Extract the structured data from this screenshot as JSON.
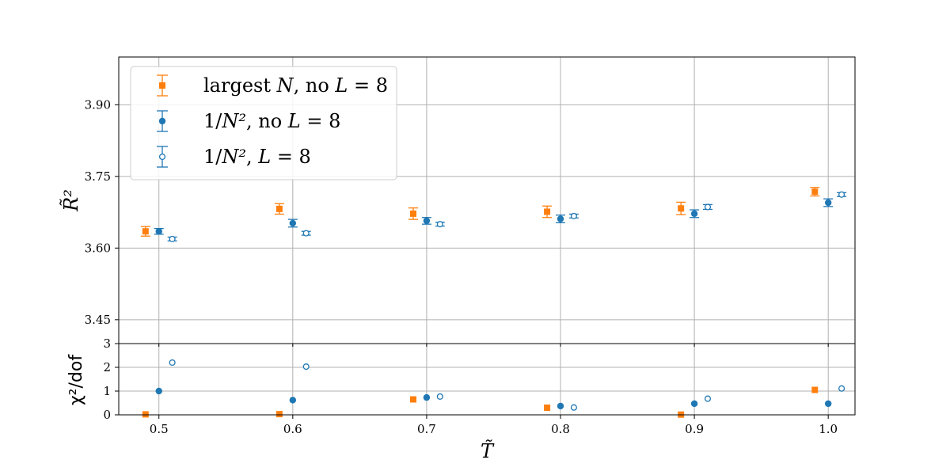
{
  "chart_data": [
    {
      "type": "scatter",
      "panel": "top",
      "xlabel": "T̃",
      "ylabel": "R̃²",
      "xlim": [
        0.47,
        1.02
      ],
      "ylim": [
        3.4,
        4.0
      ],
      "yticks": [
        3.45,
        3.6,
        3.75,
        3.9
      ],
      "ytick_labels": [
        "3.45",
        "3.60",
        "3.75",
        "3.90"
      ],
      "grid": true,
      "legend_position": "top-left",
      "series": [
        {
          "name": "largest N, no L = 8",
          "legend_parts": {
            "pre": "largest ",
            "var1": "N",
            "mid": ", no ",
            "var2": "L",
            "post": " = 8"
          },
          "color": "#ff7f0e",
          "marker": "square",
          "x": [
            0.49,
            0.59,
            0.69,
            0.79,
            0.89,
            0.99
          ],
          "y": [
            3.635,
            3.682,
            3.672,
            3.676,
            3.683,
            3.718
          ],
          "yerr": [
            0.01,
            0.011,
            0.012,
            0.012,
            0.013,
            0.009
          ]
        },
        {
          "name": "1/N², no L = 8",
          "legend_parts": {
            "pre": "1/",
            "var1": "N²",
            "mid": ", no ",
            "var2": "L",
            "post": " = 8"
          },
          "color": "#1f77b4",
          "marker": "circle",
          "x": [
            0.5,
            0.6,
            0.7,
            0.8,
            0.9,
            1.0
          ],
          "y": [
            3.635,
            3.652,
            3.657,
            3.661,
            3.672,
            3.695
          ],
          "yerr": [
            0.006,
            0.008,
            0.007,
            0.008,
            0.008,
            0.008
          ]
        },
        {
          "name": "1/N², L = 8",
          "legend_parts": {
            "pre": "1/",
            "var1": "N²",
            "mid": ", ",
            "var2": "L",
            "post": " = 8"
          },
          "color": "#1f77b4",
          "marker": "open-circle",
          "x": [
            0.51,
            0.61,
            0.71,
            0.81,
            0.91,
            1.01
          ],
          "y": [
            3.619,
            3.631,
            3.65,
            3.667,
            3.686,
            3.712
          ],
          "yerr": [
            0.004,
            0.004,
            0.004,
            0.004,
            0.005,
            0.004
          ]
        }
      ]
    },
    {
      "type": "scatter",
      "panel": "bottom",
      "xlabel": "T̃",
      "ylabel": "χ²/dof",
      "xlim": [
        0.47,
        1.02
      ],
      "ylim": [
        0,
        3
      ],
      "yticks": [
        0,
        1,
        2,
        3
      ],
      "ytick_labels": [
        "0",
        "1",
        "2",
        "3"
      ],
      "xticks": [
        0.5,
        0.6,
        0.7,
        0.8,
        0.9,
        1.0
      ],
      "xtick_labels": [
        "0.5",
        "0.6",
        "0.7",
        "0.8",
        "0.9",
        "1.0"
      ],
      "grid": true,
      "series": [
        {
          "name": "largest N, no L = 8",
          "color": "#ff7f0e",
          "marker": "square",
          "x": [
            0.49,
            0.59,
            0.69,
            0.79,
            0.89,
            0.99
          ],
          "y": [
            0.02,
            0.03,
            0.65,
            0.3,
            0.01,
            1.05
          ]
        },
        {
          "name": "1/N², no L = 8",
          "color": "#1f77b4",
          "marker": "circle",
          "x": [
            0.5,
            0.6,
            0.7,
            0.8,
            0.9,
            1.0
          ],
          "y": [
            1.0,
            0.62,
            0.73,
            0.37,
            0.47,
            0.47
          ]
        },
        {
          "name": "1/N², L = 8",
          "color": "#1f77b4",
          "marker": "open-circle",
          "x": [
            0.51,
            0.61,
            0.71,
            0.81,
            0.91,
            1.01
          ],
          "y": [
            2.2,
            2.03,
            0.77,
            0.31,
            0.68,
            1.11
          ]
        }
      ]
    }
  ]
}
